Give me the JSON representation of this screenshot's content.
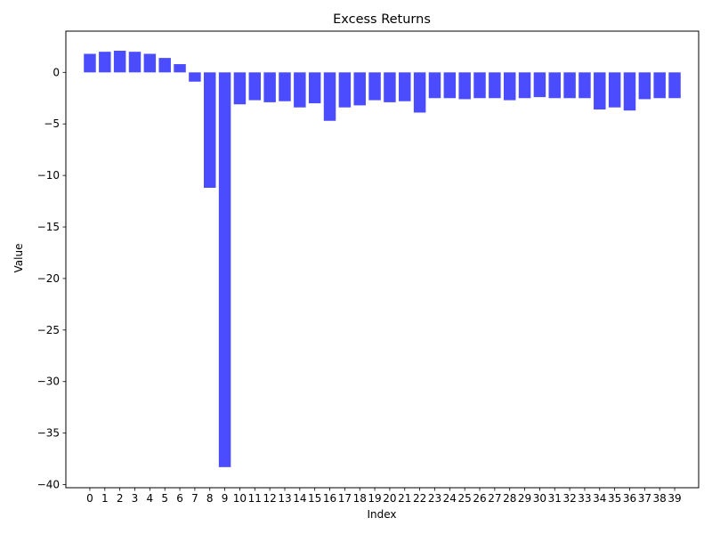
{
  "chart_data": {
    "type": "bar",
    "title": "Excess Returns",
    "xlabel": "Index",
    "ylabel": "Value",
    "categories": [
      "0",
      "1",
      "2",
      "3",
      "4",
      "5",
      "6",
      "7",
      "8",
      "9",
      "10",
      "11",
      "12",
      "13",
      "14",
      "15",
      "16",
      "17",
      "18",
      "19",
      "20",
      "21",
      "22",
      "23",
      "24",
      "25",
      "26",
      "27",
      "28",
      "29",
      "30",
      "31",
      "32",
      "33",
      "34",
      "35",
      "36",
      "37",
      "38",
      "39"
    ],
    "values": [
      1.8,
      2.0,
      2.1,
      2.0,
      1.8,
      1.4,
      0.8,
      -0.9,
      -11.2,
      -38.3,
      -3.1,
      -2.7,
      -2.9,
      -2.8,
      -3.4,
      -3.0,
      -4.7,
      -3.4,
      -3.2,
      -2.7,
      -2.9,
      -2.8,
      -3.9,
      -2.5,
      -2.5,
      -2.6,
      -2.5,
      -2.5,
      -2.7,
      -2.5,
      -2.4,
      -2.5,
      -2.5,
      -2.5,
      -3.6,
      -3.4,
      -3.7,
      -2.6,
      -2.5,
      -2.5
    ],
    "ylim": [
      -40.3,
      4.0
    ],
    "yticks": [
      0,
      -5,
      -10,
      -15,
      -20,
      -25,
      -30,
      -35,
      -40
    ],
    "ytick_labels": [
      "0",
      "−5",
      "−10",
      "−15",
      "−20",
      "−25",
      "−30",
      "−35",
      "−40"
    ],
    "bar_color": "#4c4cff",
    "grid": false,
    "legend": "none"
  }
}
